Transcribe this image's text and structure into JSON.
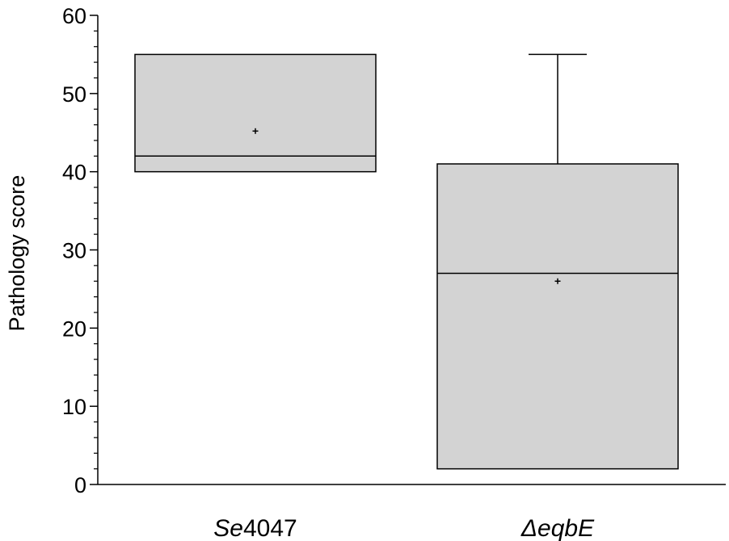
{
  "chart_data": {
    "type": "box",
    "ylabel": "Pathology score",
    "xlabel": "",
    "ylim": [
      0,
      60
    ],
    "y_ticks": [
      0,
      10,
      20,
      30,
      40,
      50,
      60
    ],
    "y_tick_labels": [
      "0",
      "10",
      "20",
      "30",
      "40",
      "50",
      "60"
    ],
    "y_minor_tick_step": 2,
    "grid": false,
    "categories": [
      {
        "label_italic": "Se",
        "label_plain": "4047"
      },
      {
        "label_italic": "ΔeqbE",
        "label_plain": ""
      }
    ],
    "boxes": [
      {
        "q1": 40,
        "median": 42,
        "q3": 55,
        "whisker_low": 40,
        "whisker_high": 55,
        "mean": 45.2
      },
      {
        "q1": 2,
        "median": 27,
        "q3": 41,
        "whisker_low": 2,
        "whisker_high": 55,
        "mean": 26
      }
    ],
    "colors": {
      "box_fill": "#d3d3d3",
      "stroke": "#000000"
    }
  }
}
